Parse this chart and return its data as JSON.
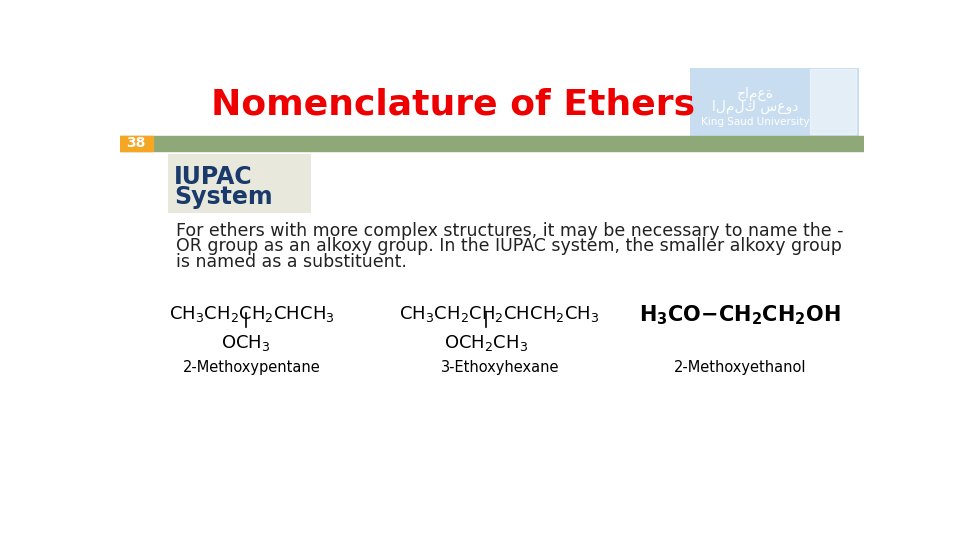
{
  "title": "Nomenclature of Ethers",
  "title_color": "#EE0000",
  "title_fontsize": 26,
  "slide_number": "38",
  "slide_number_bg": "#F5A623",
  "banner_color": "#8FA878",
  "bg_color": "#FFFFFF",
  "iupac_box_color": "#E8E8DC",
  "iupac_title_color": "#1A3A6B",
  "body_text_line1": "For ethers with more complex structures, it may be necessary to name the -",
  "body_text_line2": "OR group as an alkoxy group. In the IUPAC system, the smaller alkoxy group",
  "body_text_line3": "is named as a substituent.",
  "body_text_color": "#222222",
  "body_fontsize": 12.5,
  "struct1_name": "2-Methoxypentane",
  "struct2_name": "3-Ethoxyhexane",
  "struct3_name": "2-Methoxyethanol",
  "struct_color": "#000000",
  "struct_fontsize": 13,
  "struct_name_fontsize": 10.5,
  "ksu_box_color": "#C8DDF0",
  "ksu_text": "King Saud University"
}
